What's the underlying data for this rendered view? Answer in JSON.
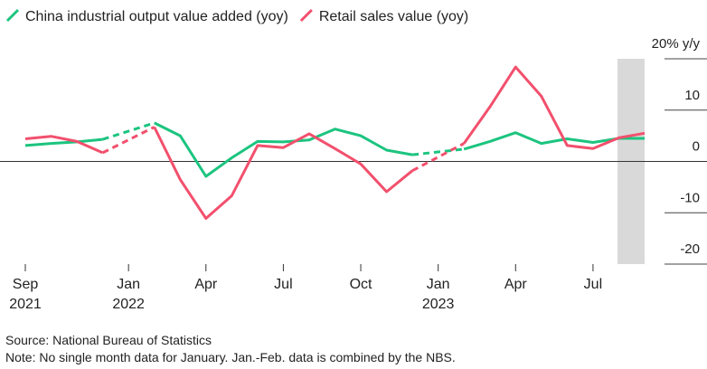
{
  "chart_data": {
    "type": "line",
    "categories": [
      "Sep 2021",
      null,
      null,
      null,
      "Jan 2022",
      null,
      null,
      "Apr",
      null,
      null,
      "Jul",
      null,
      null,
      "Oct",
      null,
      null,
      "Jan 2023",
      null,
      null,
      "Apr",
      null,
      null,
      "Jul",
      null,
      null
    ],
    "series": [
      {
        "name": "China industrial output value added (yoy)",
        "color": "#1cc47f",
        "values": [
          3.1,
          3.5,
          3.8,
          4.3,
          null,
          7.5,
          5.0,
          -2.9,
          0.7,
          3.9,
          3.8,
          4.2,
          6.3,
          5.0,
          2.2,
          1.3,
          null,
          2.4,
          3.9,
          5.6,
          3.5,
          4.4,
          3.7,
          4.5,
          4.5
        ]
      },
      {
        "name": "Retail sales value (yoy)",
        "color": "#f2506d",
        "values": [
          4.4,
          4.9,
          3.9,
          1.7,
          null,
          6.7,
          -3.5,
          -11.1,
          -6.7,
          3.1,
          2.7,
          5.4,
          2.5,
          -0.5,
          -5.9,
          -1.8,
          null,
          3.5,
          10.6,
          18.4,
          12.7,
          3.1,
          2.5,
          4.6,
          5.5
        ]
      }
    ],
    "ylim": [
      -20,
      20
    ],
    "yticks": [
      {
        "value": 20,
        "label": "20% y/y"
      },
      10,
      0,
      -10,
      -20
    ],
    "grid": true,
    "source": "Source: National Bureau of Statistics",
    "note": "Note: No single month data for January. Jan.-Feb. data is combined by the NBS."
  }
}
